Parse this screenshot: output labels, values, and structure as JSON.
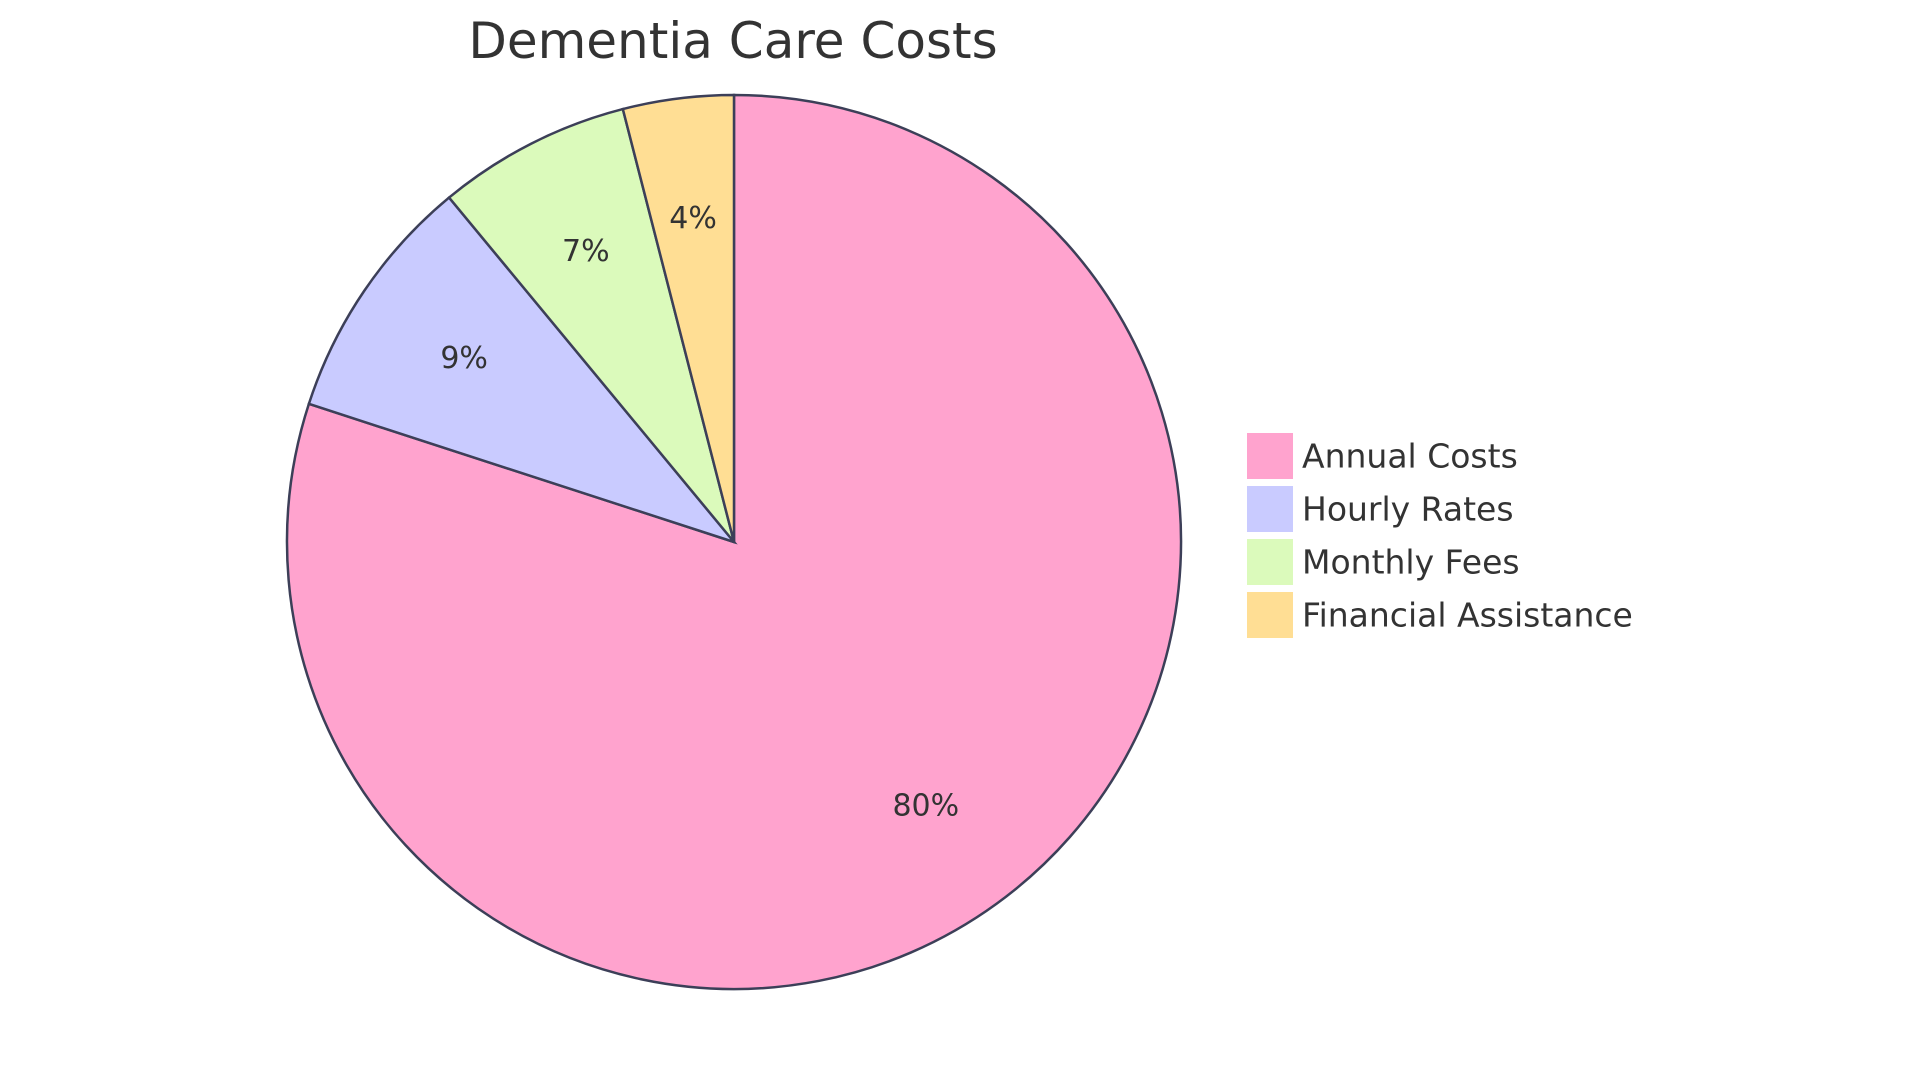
{
  "chart_data": {
    "type": "pie",
    "title": "Dementia Care Costs",
    "categories": [
      "Annual Costs",
      "Hourly Rates",
      "Monthly Fees",
      "Financial Assistance"
    ],
    "values": [
      80,
      9,
      7,
      4
    ],
    "labels": [
      "80%",
      "9%",
      "7%",
      "4%"
    ],
    "colors": [
      "#FFA3CE",
      "#C9CBFF",
      "#DBFABB",
      "#FFDE94"
    ],
    "stroke_color": "#3C3F58",
    "start": "top",
    "direction": "clockwise",
    "legend_placement": "right"
  }
}
